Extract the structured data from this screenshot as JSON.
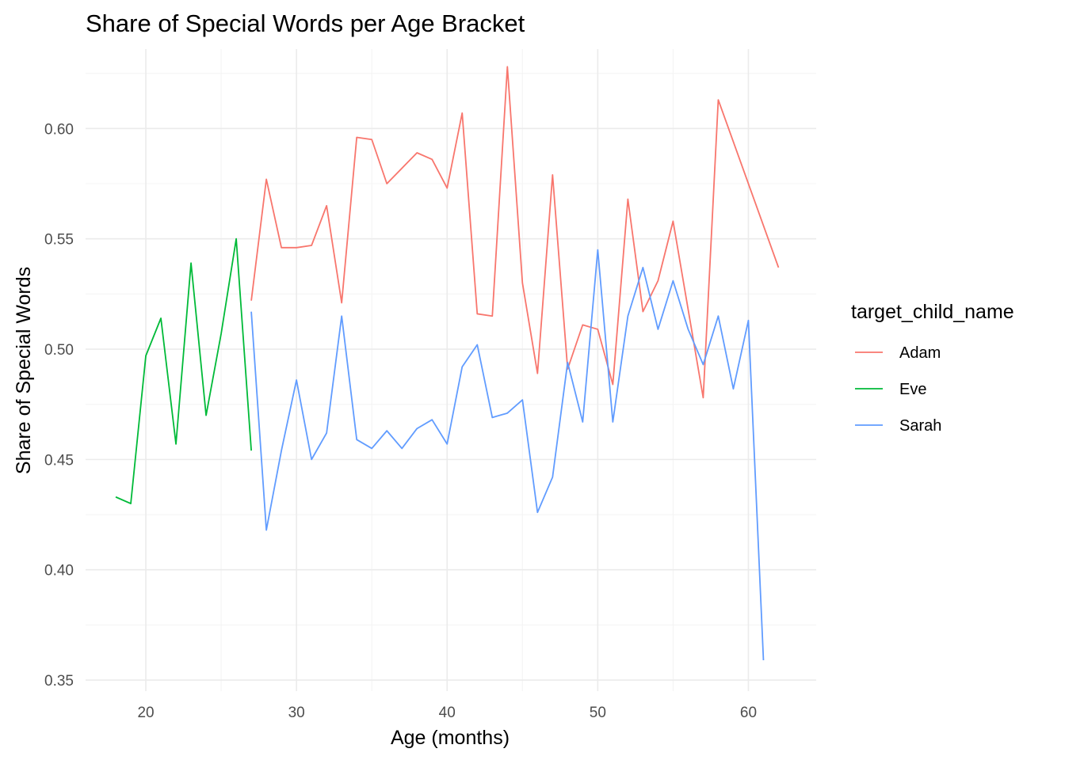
{
  "chart_data": {
    "type": "line",
    "title": "Share of Special Words per Age Bracket",
    "xlabel": "Age (months)",
    "ylabel": "Share of Special Words",
    "xlim": [
      16,
      64.5
    ],
    "ylim": [
      0.345,
      0.636
    ],
    "x_ticks": [
      20,
      30,
      40,
      50,
      60
    ],
    "y_ticks": [
      0.35,
      0.4,
      0.45,
      0.5,
      0.55,
      0.6
    ],
    "x_tick_labels": [
      "20",
      "30",
      "40",
      "50",
      "60"
    ],
    "y_tick_labels": [
      "0.35",
      "0.40",
      "0.45",
      "0.50",
      "0.55",
      "0.60"
    ],
    "grid": true,
    "legend": {
      "title": "target_child_name",
      "position": "right"
    },
    "series": [
      {
        "name": "Adam",
        "color": "#F8766D",
        "x": [
          27,
          28,
          29,
          30,
          31,
          32,
          33,
          34,
          35,
          36,
          38,
          39,
          40,
          41,
          42,
          43,
          44,
          45,
          46,
          47,
          48,
          49,
          50,
          51,
          52,
          53,
          54,
          55,
          57,
          58,
          62
        ],
        "y": [
          0.522,
          0.577,
          0.546,
          0.546,
          0.547,
          0.565,
          0.521,
          0.596,
          0.595,
          0.575,
          0.589,
          0.586,
          0.573,
          0.607,
          0.516,
          0.515,
          0.628,
          0.53,
          0.489,
          0.579,
          0.491,
          0.511,
          0.509,
          0.484,
          0.568,
          0.517,
          0.531,
          0.558,
          0.478,
          0.613,
          0.537
        ]
      },
      {
        "name": "Eve",
        "color": "#00BA38",
        "x": [
          18,
          19,
          20,
          21,
          22,
          23,
          24,
          25,
          26,
          27
        ],
        "y": [
          0.433,
          0.43,
          0.497,
          0.514,
          0.457,
          0.539,
          0.47,
          0.507,
          0.55,
          0.454
        ]
      },
      {
        "name": "Sarah",
        "color": "#619CFF",
        "x": [
          27,
          28,
          29,
          30,
          31,
          32,
          33,
          34,
          35,
          36,
          37,
          38,
          39,
          40,
          41,
          42,
          43,
          44,
          45,
          46,
          47,
          48,
          49,
          50,
          51,
          52,
          53,
          54,
          55,
          56,
          57,
          58,
          59,
          60,
          61
        ],
        "y": [
          0.517,
          0.418,
          0.454,
          0.486,
          0.45,
          0.462,
          0.515,
          0.459,
          0.455,
          0.463,
          0.455,
          0.464,
          0.468,
          0.457,
          0.492,
          0.502,
          0.469,
          0.471,
          0.477,
          0.426,
          0.442,
          0.494,
          0.467,
          0.545,
          0.467,
          0.515,
          0.537,
          0.509,
          0.531,
          0.509,
          0.493,
          0.515,
          0.482,
          0.513,
          0.359
        ]
      }
    ]
  }
}
